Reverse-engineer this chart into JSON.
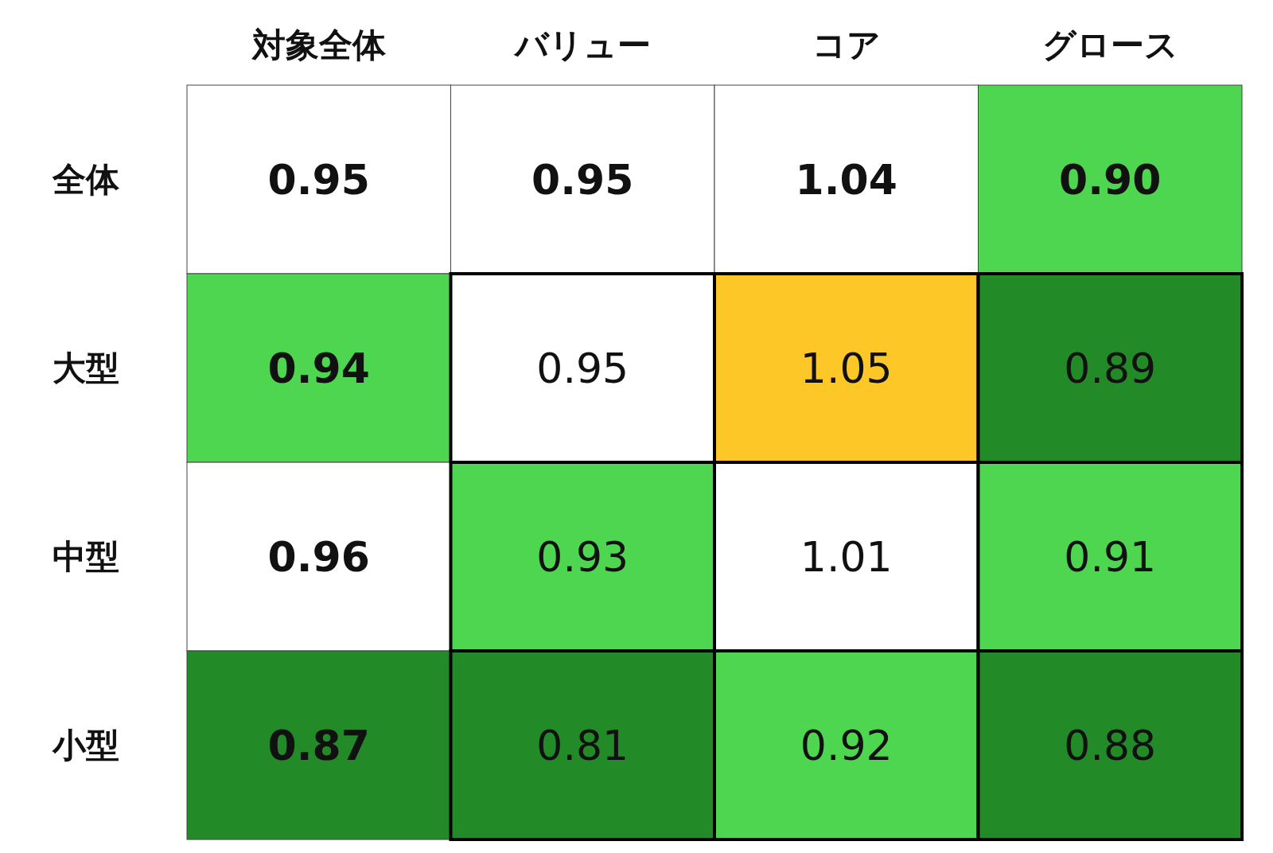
{
  "chart_data": {
    "type": "heatmap",
    "categories": [
      "対象全体",
      "バリュー",
      "コア",
      "グロース"
    ],
    "y_categories": [
      "全体",
      "大型",
      "中型",
      "小型"
    ],
    "cells": [
      [
        0.95,
        0.95,
        1.04,
        0.9
      ],
      [
        0.94,
        0.95,
        1.05,
        0.89
      ],
      [
        0.96,
        0.93,
        1.01,
        0.91
      ],
      [
        0.87,
        0.81,
        0.92,
        0.88
      ]
    ],
    "cell_labels": [
      [
        "0.95",
        "0.95",
        "1.04",
        "0.90"
      ],
      [
        "0.94",
        "0.95",
        "1.05",
        "0.89"
      ],
      [
        "0.96",
        "0.93",
        "1.01",
        "0.91"
      ],
      [
        "0.87",
        "0.81",
        "0.92",
        "0.88"
      ]
    ]
  }
}
